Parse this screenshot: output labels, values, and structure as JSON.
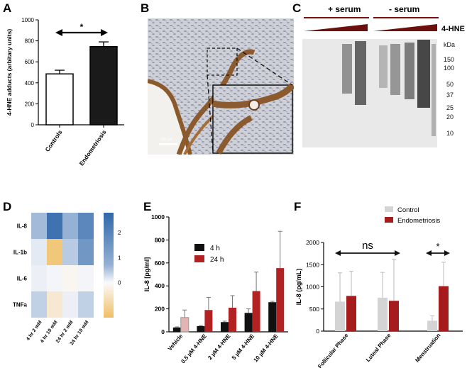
{
  "panels": {
    "A": {
      "label": "A"
    },
    "B": {
      "label": "B",
      "scale_bar": "100 µm"
    },
    "C": {
      "label": "C",
      "plus_serum": "+ serum",
      "minus_serum": "- serum",
      "target": "4-HNE",
      "kda_label": "kDa",
      "markers": [
        "150",
        "100",
        "50",
        "37",
        "25",
        "20",
        "10"
      ]
    },
    "D": {
      "label": "D"
    },
    "E": {
      "label": "E"
    },
    "F": {
      "label": "F",
      "ns_label": "ns",
      "star_label": "*"
    }
  },
  "chart_data": [
    {
      "id": "A",
      "type": "bar",
      "title": "",
      "ylabel": "4-HNE adducts (arbitary units)",
      "categories": [
        "Controls",
        "Endometriosis"
      ],
      "values": [
        485,
        745
      ],
      "errors": [
        35,
        45
      ],
      "colors": [
        "#ffffff",
        "#1a1a1a"
      ],
      "ylim": [
        0,
        1000
      ],
      "yticks": [
        "0",
        "200",
        "400",
        "600",
        "800",
        "1000"
      ],
      "annotation": "*"
    },
    {
      "id": "D",
      "type": "heatmap",
      "rows": [
        "IL-8",
        "IL-1b",
        "IL-6",
        "TNFa"
      ],
      "cols": [
        "4 hr 2 mM",
        "4 hr 10 mM",
        "24 hr 2 mM",
        "24 hr 10 mM"
      ],
      "values": [
        [
          1.2,
          2.6,
          1.4,
          2.2
        ],
        [
          0.3,
          -1.2,
          0.9,
          1.9
        ],
        [
          0.2,
          0.1,
          -0.1,
          0.1
        ],
        [
          0.8,
          -0.4,
          0.2,
          0.8
        ]
      ],
      "colorbar_ticks": [
        "2",
        "1",
        "0"
      ],
      "vmin": -1.4,
      "vmax": 2.8
    },
    {
      "id": "E",
      "type": "bar",
      "ylabel": "IL-8 [pg/ml]",
      "categories": [
        "Vehicle",
        "0.5 µM 4-HNE",
        "2 µM 4-HNE",
        "5 µM 4-HNE",
        "10 µM 4-HNE"
      ],
      "series": [
        {
          "name": "4 h",
          "values": [
            38,
            50,
            85,
            165,
            258
          ],
          "errors": [
            5,
            5,
            8,
            35,
            8
          ],
          "color": "#111111"
        },
        {
          "name": "24 h",
          "values": [
            125,
            190,
            210,
            355,
            555
          ],
          "errors": [
            65,
            110,
            105,
            165,
            320
          ],
          "color": "#b22222"
        }
      ],
      "vehicle_24h_color": "#e3b5b2",
      "ylim": [
        0,
        1000
      ],
      "yticks": [
        "0",
        "200",
        "400",
        "600",
        "800",
        "1000"
      ]
    },
    {
      "id": "F",
      "type": "bar",
      "ylabel": "IL-8 (pg/mL)",
      "categories": [
        "Follicular Phase",
        "Luteal Phase",
        "Menstruation"
      ],
      "series": [
        {
          "name": "Control",
          "values": [
            665,
            755,
            235
          ],
          "errors": [
            650,
            570,
            110
          ],
          "color": "#d4d4d4"
        },
        {
          "name": "Endometriosis",
          "values": [
            795,
            685,
            1015
          ],
          "errors": [
            555,
            935,
            540
          ],
          "color": "#a61c1c"
        }
      ],
      "ylim": [
        0,
        2000
      ],
      "yticks": [
        "0",
        "500",
        "1000",
        "1500",
        "2000"
      ]
    }
  ]
}
